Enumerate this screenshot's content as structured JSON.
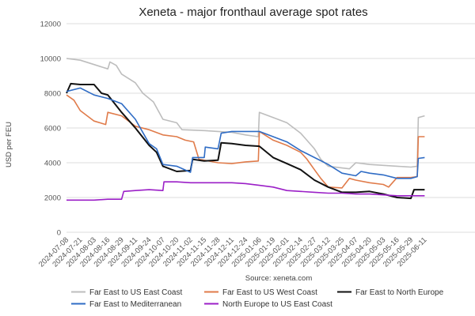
{
  "chart_data": {
    "type": "line",
    "title": "Xeneta - major fronthaul average spot rates",
    "xlabel": "",
    "ylabel": "USD per FEU",
    "source": "Source: xeneta.com",
    "ylim": [
      0,
      12000
    ],
    "yticks": [
      0,
      2000,
      4000,
      6000,
      8000,
      10000,
      12000
    ],
    "xrange": [
      "2024-07-08",
      "2025-06-11"
    ],
    "xticks": [
      "2024-07-08",
      "2024-07-21",
      "2024-08-03",
      "2024-08-16",
      "2024-08-29",
      "2024-09-11",
      "2024-09-24",
      "2024-10-07",
      "2024-10-20",
      "2024-11-02",
      "2024-11-15",
      "2024-11-28",
      "2024-12-11",
      "2024-12-24",
      "2025-01-06",
      "2025-01-19",
      "2025-02-01",
      "2025-02-14",
      "2025-02-27",
      "2025-03-12",
      "2025-03-25",
      "2025-04-07",
      "2025-04-20",
      "2025-05-03",
      "2025-05-16",
      "2025-05-29",
      "2025-06-11"
    ],
    "grid": "horizontal",
    "legend_position": "bottom",
    "series": [
      {
        "name": "Far East to US East Coast",
        "color": "#bdbdbd",
        "points": [
          [
            "2024-07-08",
            10000
          ],
          [
            "2024-07-21",
            9900
          ],
          [
            "2024-08-03",
            9650
          ],
          [
            "2024-08-16",
            9400
          ],
          [
            "2024-08-18",
            9800
          ],
          [
            "2024-08-24",
            9600
          ],
          [
            "2024-08-29",
            9100
          ],
          [
            "2024-09-11",
            8600
          ],
          [
            "2024-09-18",
            8000
          ],
          [
            "2024-09-28",
            7500
          ],
          [
            "2024-10-07",
            6500
          ],
          [
            "2024-10-20",
            6300
          ],
          [
            "2024-10-25",
            5900
          ],
          [
            "2024-11-15",
            5850
          ],
          [
            "2024-11-28",
            5800
          ],
          [
            "2024-12-11",
            5750
          ],
          [
            "2024-12-24",
            5600
          ],
          [
            "2025-01-05",
            5500
          ],
          [
            "2025-01-06",
            6900
          ],
          [
            "2025-01-19",
            6600
          ],
          [
            "2025-02-01",
            6300
          ],
          [
            "2025-02-14",
            5700
          ],
          [
            "2025-02-27",
            4800
          ],
          [
            "2025-03-05",
            4200
          ],
          [
            "2025-03-12",
            3800
          ],
          [
            "2025-03-25",
            3700
          ],
          [
            "2025-04-01",
            3650
          ],
          [
            "2025-04-07",
            4000
          ],
          [
            "2025-04-20",
            3900
          ],
          [
            "2025-05-03",
            3850
          ],
          [
            "2025-05-16",
            3800
          ],
          [
            "2025-05-29",
            3750
          ],
          [
            "2025-06-04",
            3800
          ],
          [
            "2025-06-05",
            6600
          ],
          [
            "2025-06-11",
            6700
          ]
        ]
      },
      {
        "name": "Far East to US West Coast",
        "color": "#e07b4a",
        "points": [
          [
            "2024-07-08",
            7900
          ],
          [
            "2024-07-15",
            7600
          ],
          [
            "2024-07-21",
            7000
          ],
          [
            "2024-08-03",
            6400
          ],
          [
            "2024-08-14",
            6200
          ],
          [
            "2024-08-16",
            6900
          ],
          [
            "2024-08-29",
            6700
          ],
          [
            "2024-09-11",
            6100
          ],
          [
            "2024-09-24",
            5900
          ],
          [
            "2024-10-07",
            5600
          ],
          [
            "2024-10-20",
            5500
          ],
          [
            "2024-10-28",
            5300
          ],
          [
            "2024-11-05",
            5200
          ],
          [
            "2024-11-10",
            4200
          ],
          [
            "2024-11-28",
            4000
          ],
          [
            "2024-12-11",
            3950
          ],
          [
            "2024-12-24",
            4050
          ],
          [
            "2025-01-05",
            4100
          ],
          [
            "2025-01-06",
            5800
          ],
          [
            "2025-01-19",
            5300
          ],
          [
            "2025-02-01",
            5000
          ],
          [
            "2025-02-14",
            4600
          ],
          [
            "2025-02-20",
            4200
          ],
          [
            "2025-02-27",
            3600
          ],
          [
            "2025-03-05",
            3100
          ],
          [
            "2025-03-12",
            2600
          ],
          [
            "2025-03-25",
            2550
          ],
          [
            "2025-04-01",
            3100
          ],
          [
            "2025-04-07",
            3000
          ],
          [
            "2025-04-20",
            2850
          ],
          [
            "2025-05-03",
            2750
          ],
          [
            "2025-05-08",
            2600
          ],
          [
            "2025-05-16",
            3150
          ],
          [
            "2025-05-29",
            3150
          ],
          [
            "2025-06-04",
            3200
          ],
          [
            "2025-06-05",
            5500
          ],
          [
            "2025-06-11",
            5500
          ]
        ]
      },
      {
        "name": "Far East to North Europe",
        "color": "#111111",
        "points": [
          [
            "2024-07-08",
            8000
          ],
          [
            "2024-07-12",
            8550
          ],
          [
            "2024-07-21",
            8500
          ],
          [
            "2024-08-03",
            8500
          ],
          [
            "2024-08-10",
            8000
          ],
          [
            "2024-08-16",
            7900
          ],
          [
            "2024-08-29",
            6900
          ],
          [
            "2024-09-11",
            6000
          ],
          [
            "2024-09-24",
            5000
          ],
          [
            "2024-10-01",
            4600
          ],
          [
            "2024-10-07",
            3800
          ],
          [
            "2024-10-20",
            3500
          ],
          [
            "2024-11-02",
            3550
          ],
          [
            "2024-11-04",
            4200
          ],
          [
            "2024-11-15",
            4100
          ],
          [
            "2024-11-28",
            4150
          ],
          [
            "2024-12-01",
            5150
          ],
          [
            "2024-12-11",
            5100
          ],
          [
            "2024-12-24",
            5000
          ],
          [
            "2025-01-06",
            4950
          ],
          [
            "2025-01-19",
            4300
          ],
          [
            "2025-02-01",
            3950
          ],
          [
            "2025-02-14",
            3600
          ],
          [
            "2025-02-27",
            3000
          ],
          [
            "2025-03-12",
            2600
          ],
          [
            "2025-03-25",
            2300
          ],
          [
            "2025-04-07",
            2300
          ],
          [
            "2025-04-20",
            2350
          ],
          [
            "2025-05-03",
            2200
          ],
          [
            "2025-05-16",
            2000
          ],
          [
            "2025-05-29",
            1950
          ],
          [
            "2025-06-01",
            2450
          ],
          [
            "2025-06-11",
            2450
          ]
        ]
      },
      {
        "name": "Far East to Mediterranean",
        "color": "#2f6cc5",
        "points": [
          [
            "2024-07-08",
            8100
          ],
          [
            "2024-07-21",
            8300
          ],
          [
            "2024-08-03",
            7900
          ],
          [
            "2024-08-16",
            7700
          ],
          [
            "2024-08-29",
            7400
          ],
          [
            "2024-09-11",
            6500
          ],
          [
            "2024-09-24",
            5100
          ],
          [
            "2024-10-01",
            4800
          ],
          [
            "2024-10-07",
            3900
          ],
          [
            "2024-10-20",
            3800
          ],
          [
            "2024-11-02",
            3450
          ],
          [
            "2024-11-04",
            4300
          ],
          [
            "2024-11-15",
            4300
          ],
          [
            "2024-11-16",
            4900
          ],
          [
            "2024-11-28",
            4800
          ],
          [
            "2024-12-01",
            5700
          ],
          [
            "2024-12-11",
            5800
          ],
          [
            "2024-12-24",
            5800
          ],
          [
            "2025-01-06",
            5800
          ],
          [
            "2025-01-19",
            5500
          ],
          [
            "2025-02-01",
            5200
          ],
          [
            "2025-02-14",
            4700
          ],
          [
            "2025-02-27",
            4300
          ],
          [
            "2025-03-12",
            3900
          ],
          [
            "2025-03-25",
            3400
          ],
          [
            "2025-04-07",
            3250
          ],
          [
            "2025-04-12",
            3500
          ],
          [
            "2025-04-20",
            3400
          ],
          [
            "2025-05-03",
            3300
          ],
          [
            "2025-05-16",
            3100
          ],
          [
            "2025-05-29",
            3100
          ],
          [
            "2025-06-04",
            3200
          ],
          [
            "2025-06-05",
            4250
          ],
          [
            "2025-06-11",
            4300
          ]
        ]
      },
      {
        "name": "North Europe to US East Coast",
        "color": "#9b1fc7",
        "points": [
          [
            "2024-07-08",
            1850
          ],
          [
            "2024-07-21",
            1850
          ],
          [
            "2024-08-03",
            1850
          ],
          [
            "2024-08-16",
            1900
          ],
          [
            "2024-08-29",
            1900
          ],
          [
            "2024-08-31",
            2350
          ],
          [
            "2024-09-11",
            2400
          ],
          [
            "2024-09-24",
            2450
          ],
          [
            "2024-10-07",
            2400
          ],
          [
            "2024-10-08",
            2900
          ],
          [
            "2024-10-20",
            2900
          ],
          [
            "2024-11-02",
            2850
          ],
          [
            "2024-11-15",
            2850
          ],
          [
            "2024-11-28",
            2850
          ],
          [
            "2024-12-11",
            2850
          ],
          [
            "2024-12-24",
            2800
          ],
          [
            "2025-01-06",
            2700
          ],
          [
            "2025-01-19",
            2600
          ],
          [
            "2025-02-01",
            2400
          ],
          [
            "2025-02-14",
            2350
          ],
          [
            "2025-02-27",
            2300
          ],
          [
            "2025-03-12",
            2250
          ],
          [
            "2025-03-25",
            2250
          ],
          [
            "2025-04-07",
            2200
          ],
          [
            "2025-04-20",
            2200
          ],
          [
            "2025-05-03",
            2150
          ],
          [
            "2025-05-16",
            2100
          ],
          [
            "2025-05-29",
            2100
          ],
          [
            "2025-06-11",
            2100
          ]
        ]
      }
    ]
  }
}
